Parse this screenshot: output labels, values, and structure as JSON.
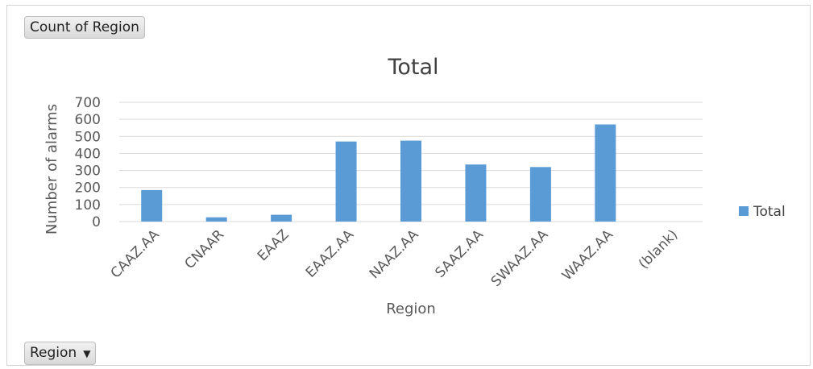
{
  "buttons": {
    "count_label": "Count of Region",
    "region_label": "Region",
    "region_caret": "▼"
  },
  "chart_data": {
    "type": "bar",
    "title": "Total",
    "xlabel": "Region",
    "ylabel": "Number of alarms",
    "categories": [
      "CAAZ.AA",
      "CNAAR",
      "EAAZ",
      "EAAZ.AA",
      "NAAZ.AA",
      "SAAZ.AA",
      "SWAAZ.AA",
      "WAAZ.AA",
      "(blank)"
    ],
    "series": [
      {
        "name": "Total",
        "values": [
          185,
          25,
          40,
          470,
          475,
          335,
          320,
          570,
          0
        ],
        "color": "#5b9bd5"
      }
    ],
    "ylim": [
      0,
      700
    ],
    "yticks": [
      0,
      100,
      200,
      300,
      400,
      500,
      600,
      700
    ],
    "grid": true,
    "legend_position": "right"
  }
}
